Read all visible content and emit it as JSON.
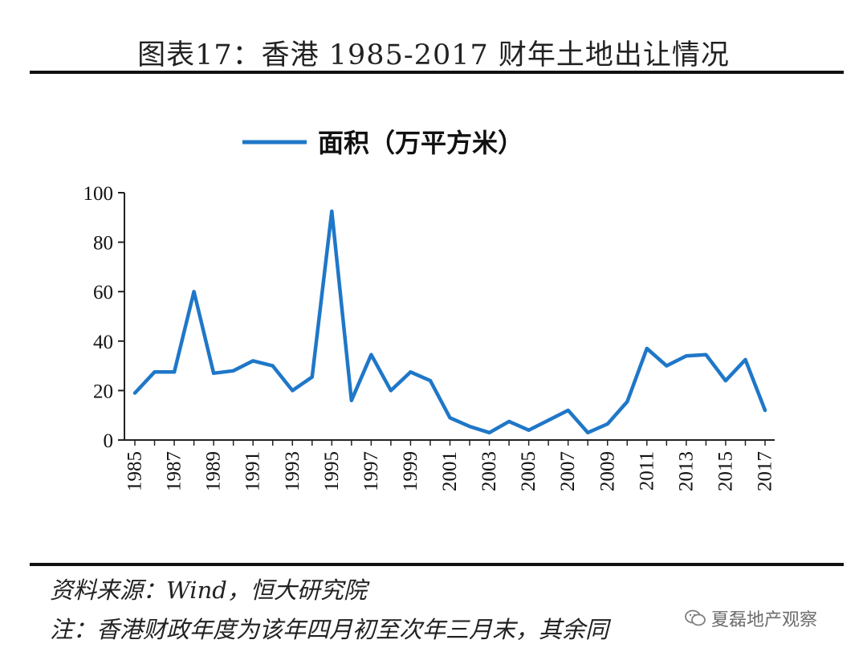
{
  "title": "图表17：香港 1985-2017 财年土地出让情况",
  "source": "资料来源：Wind，恒大研究院",
  "note": "注：香港财政年度为该年四月初至次年三月末，其余同",
  "watermark": "夏磊地产观察",
  "colors": {
    "line": "#1f77c8",
    "axis": "#222222",
    "text": "#111111"
  },
  "chart_data": {
    "type": "line",
    "title": "",
    "xlabel": "",
    "ylabel": "",
    "legend_position": "top-center",
    "grid": false,
    "ylim": [
      0,
      100
    ],
    "yticks": [
      0,
      20,
      40,
      60,
      80,
      100
    ],
    "x": [
      1985,
      1986,
      1987,
      1988,
      1989,
      1990,
      1991,
      1992,
      1993,
      1994,
      1995,
      1996,
      1997,
      1998,
      1999,
      2000,
      2001,
      2002,
      2003,
      2004,
      2005,
      2006,
      2007,
      2008,
      2009,
      2010,
      2011,
      2012,
      2013,
      2014,
      2015,
      2016,
      2017
    ],
    "x_tick_labels": [
      "1985",
      "1987",
      "1989",
      "1991",
      "1993",
      "1995",
      "1997",
      "1999",
      "2001",
      "2003",
      "2005",
      "2007",
      "2009",
      "2011",
      "2013",
      "2015",
      "2017"
    ],
    "series": [
      {
        "name": "面积（万平方米）",
        "values": [
          19,
          27.5,
          27.5,
          60,
          27,
          28,
          32,
          30,
          20,
          25.5,
          92.5,
          16,
          34.5,
          20,
          27.5,
          24,
          9,
          5.5,
          3,
          7.5,
          4,
          8,
          12,
          3,
          6.5,
          15.5,
          37,
          30,
          34,
          34.5,
          24,
          32.5,
          12
        ]
      }
    ]
  }
}
